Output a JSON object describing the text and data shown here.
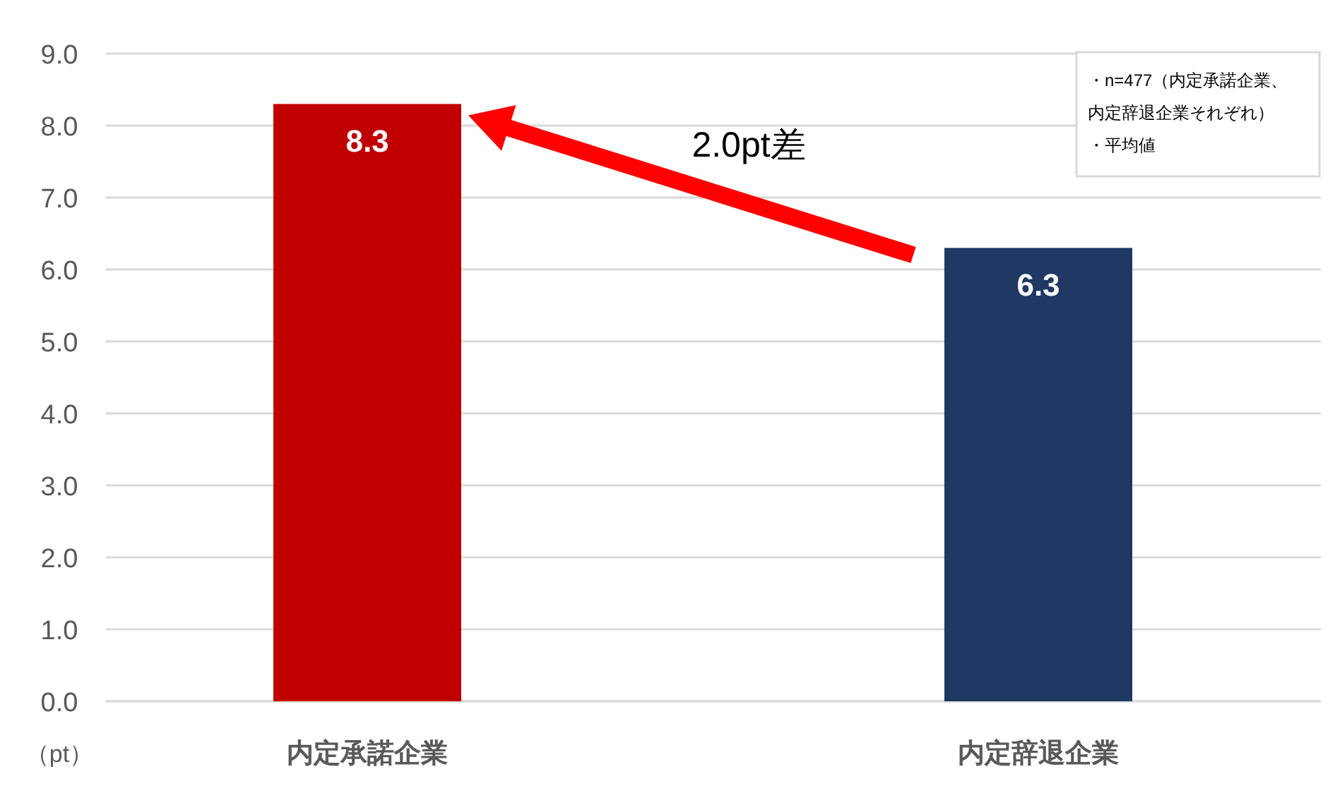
{
  "chart_data": {
    "type": "bar",
    "categories": [
      "内定承諾企業",
      "内定辞退企業"
    ],
    "values": [
      8.3,
      6.3
    ],
    "colors": [
      "#c00000",
      "#1f3864"
    ],
    "ylabel": "（pt）",
    "ylim": [
      0,
      9
    ],
    "yticks": [
      {
        "value": 0,
        "label": "0.0"
      },
      {
        "value": 1,
        "label": "1.0"
      },
      {
        "value": 2,
        "label": "2.0"
      },
      {
        "value": 3,
        "label": "3.0"
      },
      {
        "value": 4,
        "label": "4.0"
      },
      {
        "value": 5,
        "label": "5.0"
      },
      {
        "value": 6,
        "label": "6.0"
      },
      {
        "value": 7,
        "label": "7.0"
      },
      {
        "value": 8,
        "label": "8.0"
      },
      {
        "value": 9,
        "label": "9.0"
      }
    ],
    "grid": "y",
    "data_labels": true,
    "annotations": [
      "2.0pt差",
      "・n=477（内定承諾企業、",
      "内定辞退企業それぞれ）",
      "・平均値"
    ]
  }
}
